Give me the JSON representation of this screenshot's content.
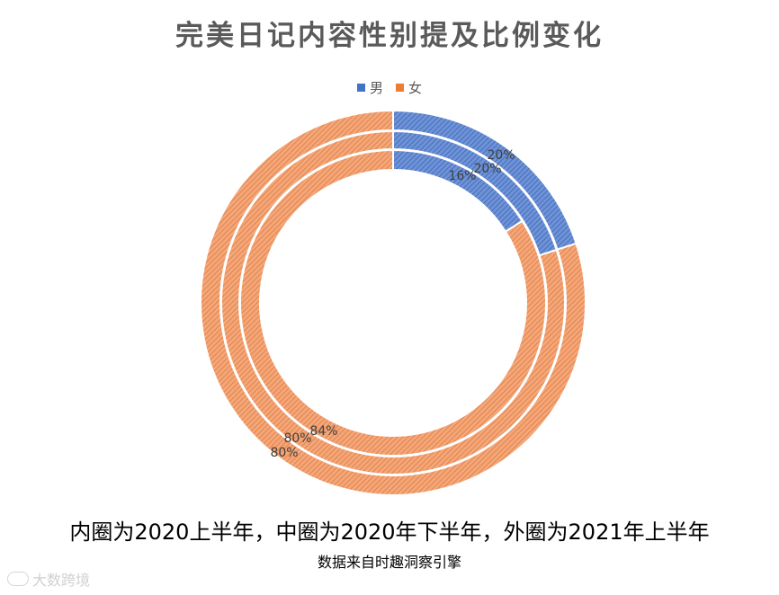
{
  "chart_data": {
    "type": "donut",
    "title": "完美日记内容性别提及比例变化",
    "legend": [
      {
        "name": "男",
        "color": "#4472C4"
      },
      {
        "name": "女",
        "color": "#ED7D31"
      }
    ],
    "legend_position": "top",
    "categories": [
      "男",
      "女"
    ],
    "rings": [
      {
        "period": "2020上半年",
        "values": [
          16,
          84
        ],
        "labels": [
          "16%",
          "84%"
        ]
      },
      {
        "period": "2020年下半年",
        "values": [
          20,
          80
        ],
        "labels": [
          "20%",
          "80%"
        ]
      },
      {
        "period": "2021年上半年",
        "values": [
          20,
          80
        ],
        "labels": [
          "20%",
          "80%"
        ]
      }
    ]
  },
  "caption": "内圈为2020上半年，中圈为2020年下半年，外圈为2021年上半年",
  "source": "数据来自时趣洞察引擎",
  "watermark": "大数跨境",
  "colors": {
    "male": "#4472C4",
    "female": "#ED7D31",
    "title": "#5a5a5a"
  }
}
